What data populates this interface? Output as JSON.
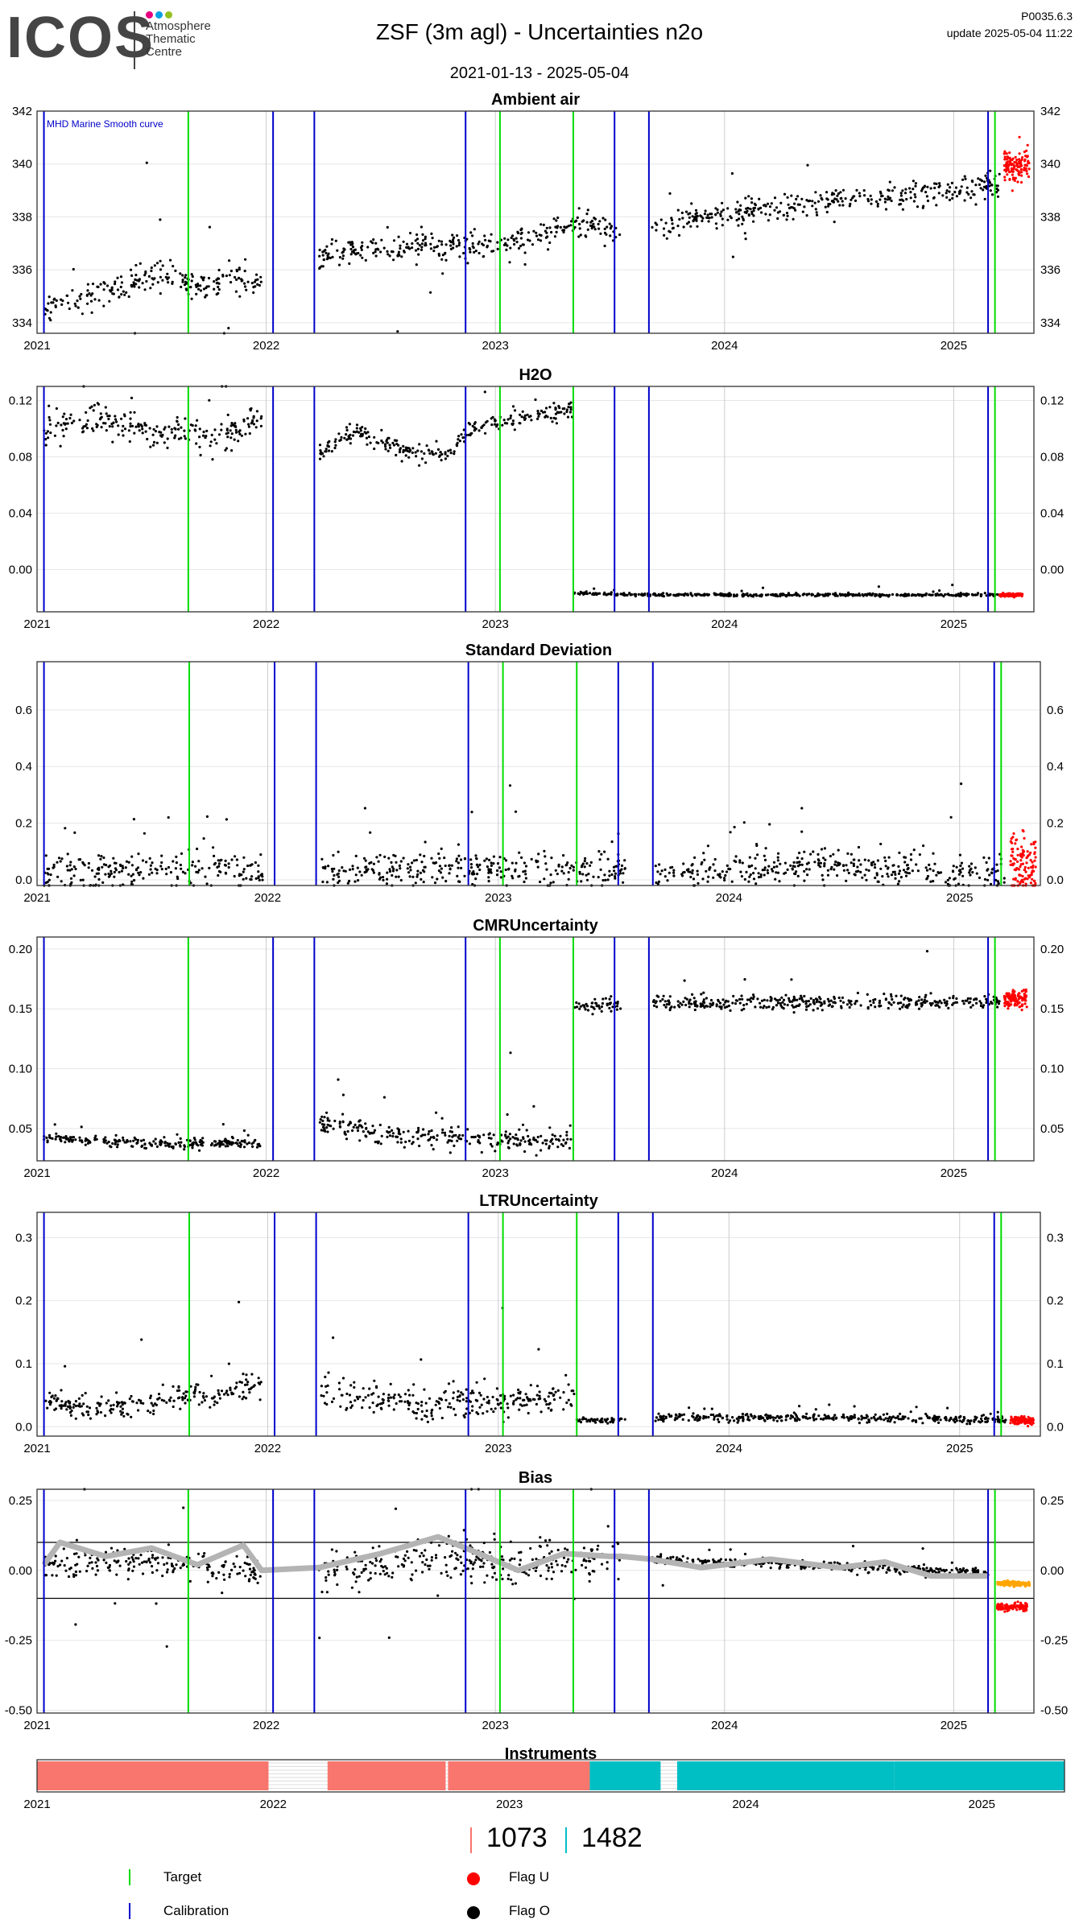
{
  "header": {
    "logo_text": "ICOS",
    "logo_subtitle": [
      "Atmosphere",
      "Thematic",
      "Centre"
    ],
    "logo_dot_colors": [
      "#e6007e",
      "#00a0e3",
      "#95c11f"
    ],
    "title": "ZSF  (3m agl) - Uncertainties n2o",
    "date_range": "2021-01-13 - 2025-05-04",
    "version": "P0035.6.3",
    "update": "update  2025-05-04 11:22"
  },
  "colors": {
    "data": "#000000",
    "flag_u": "#ff0000",
    "target": "#00dd00",
    "calibration": "#0000cc",
    "smooth": "#b4b4b4",
    "bias_recent": "#ffa500",
    "instrument_1": "#f8766d",
    "instrument_2": "#00bfc4",
    "grid": "#e6e6e6",
    "year_grid": "#cccccc"
  },
  "axis_x": {
    "start": 2021.0,
    "end": 2025.35,
    "years": [
      "2021",
      "2022",
      "2023",
      "2024",
      "2025"
    ]
  },
  "events": {
    "target": [
      2021.66,
      2023.02,
      2023.34,
      2025.18
    ],
    "calibration": [
      2021.03,
      2022.03,
      2022.21,
      2022.87,
      2023.52,
      2023.67,
      2025.15
    ]
  },
  "chart_data": [
    {
      "type": "scatter",
      "title": "Ambient air",
      "annotation": "MHD Marine Smooth curve",
      "ylim": [
        333.6,
        342.0
      ],
      "yticks": [
        "334",
        "336",
        "338",
        "340",
        "342"
      ],
      "segments": [
        {
          "x": [
            2021.03,
            2021.2,
            2021.4,
            2021.55,
            2021.7,
            2021.85,
            2021.98
          ],
          "y": [
            334.6,
            334.9,
            335.4,
            335.8,
            335.4,
            335.6,
            335.6
          ],
          "noise": 0.55
        },
        {
          "x": [
            2022.23,
            2022.5,
            2022.75,
            2022.9,
            2023.2,
            2023.4,
            2023.55
          ],
          "y": [
            336.5,
            336.8,
            336.8,
            336.9,
            337.3,
            337.8,
            337.3
          ],
          "noise": 0.5
        },
        {
          "x": [
            2023.68,
            2023.9,
            2024.2,
            2024.5,
            2024.8,
            2025.1,
            2025.2
          ],
          "y": [
            337.6,
            338.0,
            338.3,
            338.6,
            338.8,
            339.1,
            339.3
          ],
          "noise": 0.5
        }
      ],
      "flag_u": {
        "x": [
          2025.22,
          2025.33
        ],
        "y": [
          339.9,
          340.0
        ],
        "noise": 0.5
      }
    },
    {
      "type": "scatter",
      "title": "H2O",
      "ylim": [
        -0.03,
        0.13
      ],
      "yticks": [
        "0.00",
        "0.04",
        "0.08",
        "0.12"
      ],
      "segments": [
        {
          "x": [
            2021.03,
            2021.2,
            2021.4,
            2021.6,
            2021.8,
            2021.98
          ],
          "y": [
            0.095,
            0.108,
            0.102,
            0.098,
            0.093,
            0.108
          ],
          "noise": 0.012
        },
        {
          "x": [
            2022.23,
            2022.4,
            2022.6,
            2022.8,
            2022.88,
            2023.1,
            2023.34
          ],
          "y": [
            0.082,
            0.098,
            0.084,
            0.082,
            0.098,
            0.108,
            0.112
          ],
          "noise": 0.006
        },
        {
          "x": [
            2023.34,
            2023.68,
            2024.0,
            2024.5,
            2025.0,
            2025.2
          ],
          "y": [
            -0.017,
            -0.018,
            -0.018,
            -0.018,
            -0.018,
            -0.018
          ],
          "noise": 0.001
        }
      ],
      "flag_u": {
        "x": [
          2025.2,
          2025.3
        ],
        "y": [
          -0.018,
          -0.018
        ],
        "noise": 0.001
      }
    },
    {
      "type": "scatter",
      "title": "Standard Deviation",
      "ylim": [
        -0.02,
        0.77
      ],
      "yticks": [
        "0.0",
        "0.2",
        "0.4",
        "0.6"
      ],
      "segments": [
        {
          "x": [
            2021.03,
            2021.5,
            2021.98
          ],
          "y": [
            0.03,
            0.04,
            0.03
          ],
          "noise": 0.06
        },
        {
          "x": [
            2022.23,
            2022.8,
            2023.55
          ],
          "y": [
            0.03,
            0.04,
            0.035
          ],
          "noise": 0.06
        },
        {
          "x": [
            2023.68,
            2024.4,
            2025.2
          ],
          "y": [
            0.03,
            0.045,
            0.03
          ],
          "noise": 0.06
        }
      ],
      "flag_u": {
        "x": [
          2025.22,
          2025.33
        ],
        "y": [
          0.05,
          0.05
        ],
        "noise": 0.08
      }
    },
    {
      "type": "scatter",
      "title": "CMRUncertainty",
      "ylim": [
        0.023,
        0.21
      ],
      "yticks": [
        "0.05",
        "0.10",
        "0.15",
        "0.20"
      ],
      "segments": [
        {
          "x": [
            2021.03,
            2021.5,
            2021.98
          ],
          "y": [
            0.042,
            0.037,
            0.038
          ],
          "noise": 0.004
        },
        {
          "x": [
            2022.23,
            2022.6,
            2023.0,
            2023.33
          ],
          "y": [
            0.055,
            0.045,
            0.04,
            0.038
          ],
          "noise": 0.01
        },
        {
          "x": [
            2023.34,
            2023.55
          ],
          "y": [
            0.153,
            0.153
          ],
          "noise": 0.006
        },
        {
          "x": [
            2023.68,
            2024.4,
            2025.2
          ],
          "y": [
            0.155,
            0.155,
            0.156
          ],
          "noise": 0.006
        }
      ],
      "flag_u": {
        "x": [
          2025.22,
          2025.32
        ],
        "y": [
          0.158,
          0.158
        ],
        "noise": 0.006
      }
    },
    {
      "type": "scatter",
      "title": "LTRUncertainty",
      "ylim": [
        -0.015,
        0.34
      ],
      "yticks": [
        "0.0",
        "0.1",
        "0.2",
        "0.3"
      ],
      "segments": [
        {
          "x": [
            2021.03,
            2021.3,
            2021.6,
            2021.98
          ],
          "y": [
            0.04,
            0.03,
            0.045,
            0.06
          ],
          "noise": 0.02
        },
        {
          "x": [
            2022.23,
            2022.6,
            2023.0,
            2023.33
          ],
          "y": [
            0.05,
            0.035,
            0.04,
            0.05
          ],
          "noise": 0.025
        },
        {
          "x": [
            2023.34,
            2023.55
          ],
          "y": [
            0.01,
            0.01
          ],
          "noise": 0.004
        },
        {
          "x": [
            2023.68,
            2024.4,
            2025.2
          ],
          "y": [
            0.015,
            0.015,
            0.01
          ],
          "noise": 0.006
        }
      ],
      "flag_u": {
        "x": [
          2025.22,
          2025.32
        ],
        "y": [
          0.01,
          0.01
        ],
        "noise": 0.005
      }
    },
    {
      "type": "line",
      "title": "Bias",
      "ylim": [
        -0.51,
        0.29
      ],
      "yticks": [
        "-0.50",
        "-0.25",
        "0.00",
        "0.25"
      ],
      "hlines": [
        0.1,
        -0.1
      ],
      "segments": [
        {
          "x": [
            2021.03,
            2021.5,
            2021.98
          ],
          "y": [
            0.02,
            0.03,
            0.0
          ],
          "noise": 0.06
        },
        {
          "x": [
            2022.23,
            2022.7,
            2023.1,
            2023.55
          ],
          "y": [
            0.0,
            0.04,
            0.02,
            0.05
          ],
          "noise": 0.07
        },
        {
          "x": [
            2023.68,
            2024.3,
            2025.15
          ],
          "y": [
            0.04,
            0.02,
            -0.01
          ],
          "noise": 0.015
        }
      ],
      "smooth": {
        "x": [
          2021.03,
          2021.1,
          2021.3,
          2021.5,
          2021.7,
          2021.9,
          2021.98,
          2022.23,
          2022.5,
          2022.75,
          2022.9,
          2023.1,
          2023.3,
          2023.5,
          2023.55,
          2023.68,
          2023.9,
          2024.2,
          2024.5,
          2024.7,
          2024.9,
          2025.15
        ],
        "y": [
          0.02,
          0.1,
          0.05,
          0.08,
          0.02,
          0.09,
          0.0,
          0.01,
          0.06,
          0.12,
          0.07,
          0.0,
          0.06,
          0.05,
          0.05,
          0.04,
          0.01,
          0.04,
          0.01,
          0.03,
          -0.02,
          -0.02
        ]
      },
      "recent_orange": {
        "x": [
          2025.19,
          2025.33
        ],
        "y": [
          -0.045,
          -0.05
        ],
        "noise": 0.004
      },
      "flag_u": {
        "x": [
          2025.19,
          2025.32
        ],
        "y": [
          -0.13,
          -0.13
        ],
        "noise": 0.012
      }
    }
  ],
  "instruments": {
    "title": "Instruments",
    "blocks": [
      {
        "start": 2021.0,
        "end": 2021.98,
        "color_key": "instrument_1"
      },
      {
        "start": 2022.23,
        "end": 2022.73,
        "color_key": "instrument_1"
      },
      {
        "start": 2022.74,
        "end": 2023.34,
        "color_key": "instrument_1"
      },
      {
        "start": 2023.34,
        "end": 2023.64,
        "color_key": "instrument_2"
      },
      {
        "start": 2023.71,
        "end": 2024.63,
        "color_key": "instrument_2"
      },
      {
        "start": 2024.63,
        "end": 2025.35,
        "color_key": "instrument_2"
      }
    ],
    "counts": [
      "1073",
      "1482"
    ]
  },
  "legend": {
    "target": "Target",
    "calibration": "Calibration",
    "flag_u": "Flag U",
    "flag_o": "Flag O"
  }
}
